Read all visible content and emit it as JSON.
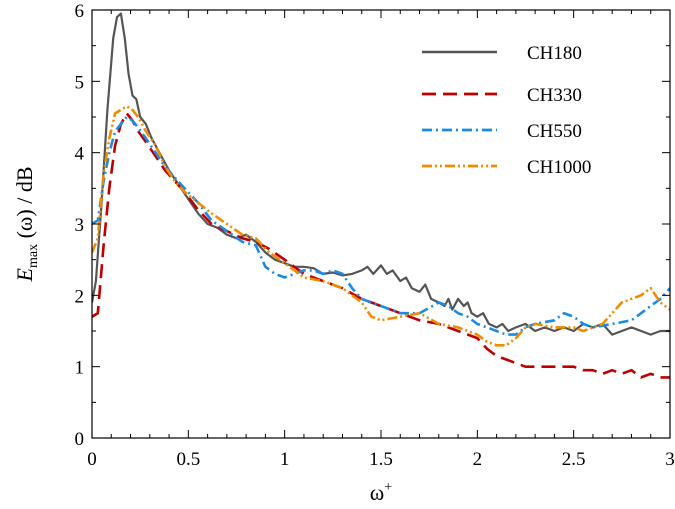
{
  "chart_data": {
    "type": "line",
    "xlabel": "ω",
    "xlabel_sup": "+",
    "ylabel_main": "E",
    "ylabel_sub": "max",
    "ylabel_rest": " (ω) / dB",
    "xlim": [
      0,
      3
    ],
    "ylim": [
      0,
      6
    ],
    "xticks": [
      0,
      0.5,
      1,
      1.5,
      2,
      2.5,
      3
    ],
    "xtick_labels": [
      "0",
      "0.5",
      "1",
      "1.5",
      "2",
      "2.5",
      "3"
    ],
    "yticks": [
      0,
      1,
      2,
      3,
      4,
      5,
      6
    ],
    "ytick_labels": [
      "0",
      "1",
      "2",
      "3",
      "4",
      "5",
      "6"
    ],
    "grid": false,
    "legend_position": "top-right",
    "series": [
      {
        "name": "CH180",
        "color": "#555555",
        "dash": "solid",
        "x": [
          0.0,
          0.02,
          0.05,
          0.08,
          0.11,
          0.13,
          0.15,
          0.17,
          0.19,
          0.21,
          0.23,
          0.25,
          0.28,
          0.31,
          0.35,
          0.4,
          0.45,
          0.5,
          0.55,
          0.6,
          0.65,
          0.7,
          0.75,
          0.8,
          0.85,
          0.9,
          0.95,
          1.0,
          1.05,
          1.1,
          1.15,
          1.2,
          1.25,
          1.3,
          1.35,
          1.4,
          1.43,
          1.46,
          1.5,
          1.53,
          1.56,
          1.6,
          1.63,
          1.66,
          1.7,
          1.73,
          1.76,
          1.8,
          1.83,
          1.85,
          1.87,
          1.9,
          1.93,
          1.95,
          1.97,
          2.0,
          2.03,
          2.06,
          2.1,
          2.13,
          2.16,
          2.2,
          2.25,
          2.3,
          2.35,
          2.4,
          2.45,
          2.5,
          2.55,
          2.6,
          2.65,
          2.7,
          2.75,
          2.8,
          2.85,
          2.9,
          2.95,
          3.0
        ],
        "y": [
          1.9,
          2.2,
          3.3,
          4.6,
          5.6,
          5.9,
          5.95,
          5.6,
          5.1,
          4.8,
          4.75,
          4.5,
          4.4,
          4.2,
          4.0,
          3.75,
          3.55,
          3.35,
          3.15,
          3.0,
          2.95,
          2.85,
          2.8,
          2.85,
          2.75,
          2.6,
          2.5,
          2.45,
          2.4,
          2.4,
          2.38,
          2.3,
          2.32,
          2.28,
          2.3,
          2.35,
          2.4,
          2.3,
          2.42,
          2.3,
          2.35,
          2.2,
          2.25,
          2.1,
          2.05,
          2.15,
          1.95,
          1.9,
          1.85,
          1.95,
          1.8,
          1.95,
          1.85,
          1.9,
          1.75,
          1.7,
          1.75,
          1.6,
          1.55,
          1.6,
          1.5,
          1.55,
          1.6,
          1.5,
          1.55,
          1.5,
          1.55,
          1.5,
          1.6,
          1.55,
          1.6,
          1.45,
          1.5,
          1.55,
          1.5,
          1.45,
          1.5,
          1.5
        ]
      },
      {
        "name": "CH330",
        "color": "#c00000",
        "dash": "dash",
        "x": [
          0.0,
          0.03,
          0.06,
          0.09,
          0.12,
          0.15,
          0.18,
          0.21,
          0.24,
          0.28,
          0.33,
          0.38,
          0.43,
          0.48,
          0.55,
          0.62,
          0.7,
          0.78,
          0.85,
          0.92,
          1.0,
          1.1,
          1.2,
          1.3,
          1.4,
          1.5,
          1.6,
          1.7,
          1.8,
          1.9,
          2.0,
          2.05,
          2.1,
          2.15,
          2.2,
          2.25,
          2.3,
          2.4,
          2.5,
          2.55,
          2.6,
          2.65,
          2.7,
          2.75,
          2.8,
          2.85,
          2.9,
          2.95,
          3.0
        ],
        "y": [
          1.7,
          1.75,
          2.7,
          3.5,
          4.1,
          4.4,
          4.55,
          4.45,
          4.3,
          4.15,
          3.95,
          3.75,
          3.6,
          3.45,
          3.2,
          3.0,
          2.9,
          2.8,
          2.75,
          2.65,
          2.5,
          2.3,
          2.2,
          2.1,
          1.95,
          1.85,
          1.75,
          1.65,
          1.6,
          1.5,
          1.4,
          1.25,
          1.15,
          1.1,
          1.05,
          1.0,
          1.0,
          1.0,
          1.0,
          0.95,
          0.95,
          0.9,
          0.95,
          0.9,
          0.95,
          0.85,
          0.9,
          0.85,
          0.85
        ]
      },
      {
        "name": "CH550",
        "color": "#1a8ce8",
        "dash": "dashdot",
        "x": [
          0.0,
          0.03,
          0.06,
          0.09,
          0.12,
          0.15,
          0.18,
          0.21,
          0.24,
          0.28,
          0.33,
          0.38,
          0.43,
          0.48,
          0.55,
          0.62,
          0.7,
          0.78,
          0.85,
          0.9,
          0.95,
          1.0,
          1.05,
          1.1,
          1.15,
          1.2,
          1.25,
          1.3,
          1.35,
          1.4,
          1.5,
          1.6,
          1.7,
          1.8,
          1.85,
          1.9,
          1.95,
          2.0,
          2.05,
          2.1,
          2.15,
          2.2,
          2.25,
          2.3,
          2.4,
          2.45,
          2.5,
          2.55,
          2.6,
          2.7,
          2.8,
          2.85,
          2.9,
          2.95,
          3.0
        ],
        "y": [
          3.0,
          3.05,
          3.6,
          4.0,
          4.3,
          4.4,
          4.5,
          4.45,
          4.35,
          4.2,
          4.0,
          3.8,
          3.65,
          3.5,
          3.3,
          3.05,
          2.9,
          2.75,
          2.7,
          2.4,
          2.3,
          2.25,
          2.3,
          2.35,
          2.35,
          2.3,
          2.35,
          2.3,
          2.1,
          1.95,
          1.85,
          1.75,
          1.75,
          1.9,
          1.85,
          1.75,
          1.7,
          1.6,
          1.55,
          1.5,
          1.45,
          1.45,
          1.55,
          1.6,
          1.65,
          1.75,
          1.7,
          1.6,
          1.55,
          1.6,
          1.65,
          1.75,
          1.85,
          1.95,
          2.1
        ]
      },
      {
        "name": "CH1000",
        "color": "#f08c00",
        "dash": "dashdotdot",
        "x": [
          0.0,
          0.03,
          0.06,
          0.09,
          0.12,
          0.15,
          0.18,
          0.21,
          0.24,
          0.28,
          0.33,
          0.38,
          0.43,
          0.48,
          0.55,
          0.62,
          0.7,
          0.78,
          0.85,
          0.92,
          1.0,
          1.1,
          1.2,
          1.3,
          1.4,
          1.45,
          1.5,
          1.6,
          1.7,
          1.8,
          1.9,
          2.0,
          2.05,
          2.1,
          2.15,
          2.2,
          2.25,
          2.3,
          2.4,
          2.5,
          2.55,
          2.6,
          2.65,
          2.7,
          2.75,
          2.8,
          2.85,
          2.9,
          2.95,
          3.0
        ],
        "y": [
          2.6,
          2.8,
          3.7,
          4.2,
          4.55,
          4.6,
          4.65,
          4.6,
          4.5,
          4.3,
          4.1,
          3.8,
          3.6,
          3.45,
          3.3,
          3.15,
          3.0,
          2.85,
          2.8,
          2.6,
          2.45,
          2.25,
          2.2,
          2.1,
          1.9,
          1.7,
          1.65,
          1.7,
          1.75,
          1.6,
          1.55,
          1.45,
          1.35,
          1.3,
          1.3,
          1.4,
          1.55,
          1.6,
          1.55,
          1.55,
          1.5,
          1.55,
          1.6,
          1.75,
          1.9,
          1.95,
          2.0,
          2.1,
          1.9,
          1.8
        ]
      }
    ]
  }
}
